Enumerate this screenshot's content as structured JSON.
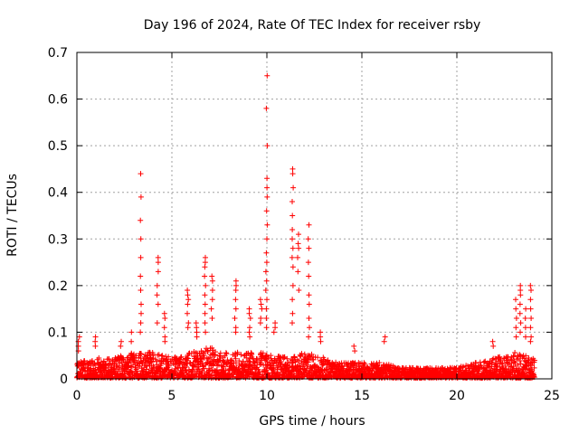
{
  "chart_data": {
    "type": "scatter",
    "title": "Day 196 of 2024, Rate Of TEC Index for receiver rsby",
    "xlabel": "GPS time / hours",
    "ylabel": "ROTI / TECUs",
    "xlim": [
      0,
      25
    ],
    "ylim": [
      0,
      0.7
    ],
    "xticks": [
      0,
      5,
      10,
      15,
      20,
      25
    ],
    "yticks": [
      0,
      0.1,
      0.2,
      0.3,
      0.4,
      0.5,
      0.6,
      0.7
    ],
    "xtick_labels": [
      "0",
      "5",
      "10",
      "15",
      "20",
      "25"
    ],
    "ytick_labels": [
      "0",
      "0.1",
      "0.2",
      "0.3",
      "0.4",
      "0.5",
      "0.6",
      "0.7"
    ],
    "grid": true,
    "marker": "+",
    "color": "#ff0000",
    "baseline": {
      "x_range": [
        0,
        24.1
      ],
      "description_hours_values": [
        [
          0,
          0.03
        ],
        [
          1,
          0.04
        ],
        [
          2,
          0.04
        ],
        [
          3,
          0.05
        ],
        [
          4,
          0.05
        ],
        [
          5,
          0.04
        ],
        [
          6,
          0.05
        ],
        [
          7,
          0.06
        ],
        [
          8,
          0.05
        ],
        [
          9,
          0.05
        ],
        [
          10,
          0.05
        ],
        [
          11,
          0.04
        ],
        [
          12,
          0.05
        ],
        [
          13,
          0.04
        ],
        [
          14,
          0.03
        ],
        [
          15,
          0.03
        ],
        [
          16,
          0.03
        ],
        [
          17,
          0.02
        ],
        [
          18,
          0.02
        ],
        [
          19,
          0.02
        ],
        [
          20,
          0.02
        ],
        [
          21,
          0.03
        ],
        [
          22,
          0.04
        ],
        [
          23,
          0.05
        ],
        [
          24,
          0.04
        ]
      ]
    },
    "spikes": [
      {
        "x": 0.1,
        "values": [
          0.06,
          0.08,
          0.07,
          0.09
        ]
      },
      {
        "x": 1.0,
        "values": [
          0.07,
          0.08,
          0.09
        ]
      },
      {
        "x": 2.3,
        "values": [
          0.07,
          0.08
        ]
      },
      {
        "x": 2.9,
        "values": [
          0.08,
          0.1
        ]
      },
      {
        "x": 3.35,
        "values": [
          0.44,
          0.39,
          0.34,
          0.3,
          0.26,
          0.22,
          0.19,
          0.16,
          0.14,
          0.12,
          0.1
        ]
      },
      {
        "x": 4.25,
        "values": [
          0.26,
          0.25,
          0.23,
          0.2,
          0.18,
          0.16,
          0.12
        ]
      },
      {
        "x": 4.6,
        "values": [
          0.14,
          0.13,
          0.11,
          0.09,
          0.08
        ]
      },
      {
        "x": 5.85,
        "values": [
          0.19,
          0.18,
          0.17,
          0.16,
          0.14,
          0.12,
          0.11
        ]
      },
      {
        "x": 6.3,
        "values": [
          0.12,
          0.11,
          0.1,
          0.09
        ]
      },
      {
        "x": 6.75,
        "values": [
          0.26,
          0.25,
          0.24,
          0.22,
          0.2,
          0.18,
          0.16,
          0.14,
          0.12,
          0.1
        ]
      },
      {
        "x": 7.1,
        "values": [
          0.22,
          0.21,
          0.19,
          0.17,
          0.15,
          0.13
        ]
      },
      {
        "x": 8.35,
        "values": [
          0.21,
          0.2,
          0.19,
          0.17,
          0.15,
          0.13,
          0.11,
          0.1
        ]
      },
      {
        "x": 9.1,
        "values": [
          0.15,
          0.14,
          0.13,
          0.11,
          0.1,
          0.09
        ]
      },
      {
        "x": 9.7,
        "values": [
          0.17,
          0.16,
          0.15,
          0.13,
          0.12
        ]
      },
      {
        "x": 9.98,
        "values": [
          0.65,
          0.58,
          0.5,
          0.43,
          0.41,
          0.39,
          0.36,
          0.33,
          0.3,
          0.27,
          0.25,
          0.23,
          0.21,
          0.19,
          0.17,
          0.15,
          0.13,
          0.11
        ]
      },
      {
        "x": 10.4,
        "values": [
          0.12,
          0.11,
          0.1
        ]
      },
      {
        "x": 11.35,
        "values": [
          0.45,
          0.44,
          0.41,
          0.38,
          0.35,
          0.32,
          0.3,
          0.28,
          0.26,
          0.24,
          0.2,
          0.17,
          0.14,
          0.12
        ]
      },
      {
        "x": 11.65,
        "values": [
          0.31,
          0.29,
          0.28,
          0.26,
          0.23,
          0.19
        ]
      },
      {
        "x": 12.2,
        "values": [
          0.33,
          0.3,
          0.28,
          0.25,
          0.22,
          0.18,
          0.16,
          0.13,
          0.11,
          0.09
        ]
      },
      {
        "x": 12.8,
        "values": [
          0.1,
          0.09,
          0.08
        ]
      },
      {
        "x": 14.6,
        "values": [
          0.07,
          0.06
        ]
      },
      {
        "x": 16.2,
        "values": [
          0.09,
          0.08
        ]
      },
      {
        "x": 21.9,
        "values": [
          0.08,
          0.07
        ]
      },
      {
        "x": 23.1,
        "values": [
          0.17,
          0.15,
          0.13,
          0.11,
          0.09
        ]
      },
      {
        "x": 23.35,
        "values": [
          0.2,
          0.19,
          0.18,
          0.16,
          0.14,
          0.12,
          0.1
        ]
      },
      {
        "x": 23.6,
        "values": [
          0.15,
          0.13,
          0.11,
          0.09
        ]
      },
      {
        "x": 23.9,
        "values": [
          0.2,
          0.19,
          0.17,
          0.15,
          0.13,
          0.11,
          0.09,
          0.08
        ]
      }
    ]
  }
}
